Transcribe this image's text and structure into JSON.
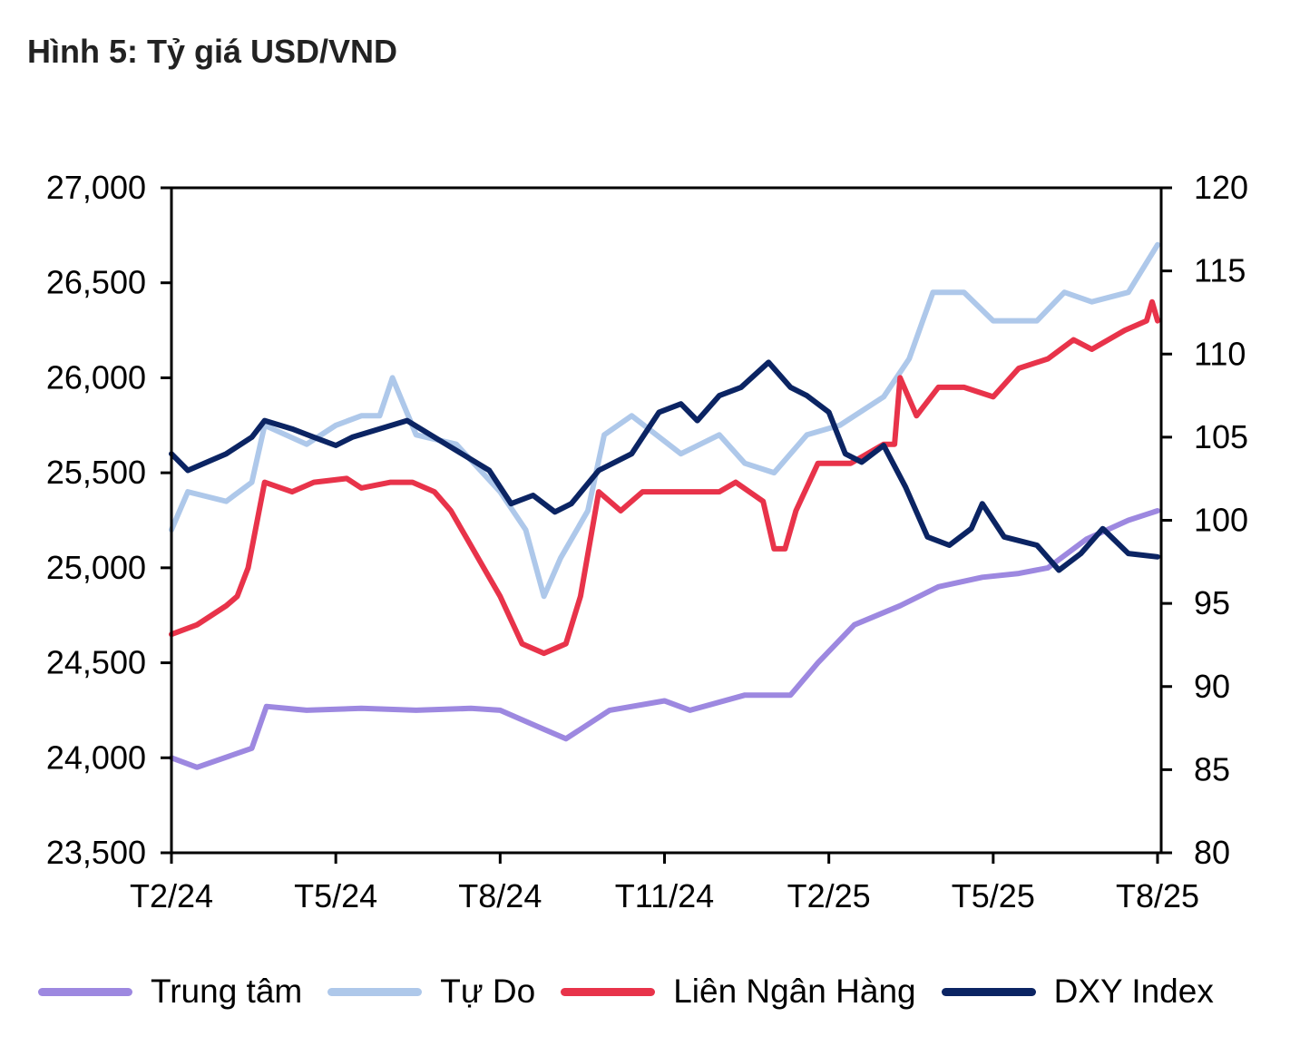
{
  "title": "Hình 5: Tỷ giá USD/VND",
  "chart_data": {
    "type": "line",
    "title": "Hình 5: Tỷ giá USD/VND",
    "x_ticks": [
      "T2/24",
      "T5/24",
      "T8/24",
      "T11/24",
      "T2/25",
      "T5/25",
      "T8/25"
    ],
    "x_tick_dates": [
      "2024-02-01",
      "2024-05-01",
      "2024-08-01",
      "2024-11-01",
      "2025-02-01",
      "2025-05-01",
      "2025-08-01"
    ],
    "xlim": [
      "2024-02-01",
      "2025-08-01"
    ],
    "y_left": {
      "lim": [
        23500,
        27000
      ],
      "ticks": [
        "23,500",
        "24,000",
        "24,500",
        "25,000",
        "25,500",
        "26,000",
        "26,500",
        "27,000"
      ],
      "values": [
        23500,
        24000,
        24500,
        25000,
        25500,
        26000,
        26500,
        27000
      ]
    },
    "y_right": {
      "lim": [
        80,
        120
      ],
      "ticks": [
        "80",
        "85",
        "90",
        "95",
        "100",
        "105",
        "110",
        "115",
        "120"
      ],
      "values": [
        80,
        85,
        90,
        95,
        100,
        105,
        110,
        115,
        120
      ]
    },
    "grid": false,
    "legend_position": "bottom",
    "series": [
      {
        "name": "Trung tâm",
        "axis": "left",
        "color": "#9d88e0",
        "points": [
          [
            "2024-02-01",
            24000
          ],
          [
            "2024-02-15",
            23950
          ],
          [
            "2024-03-15",
            24050
          ],
          [
            "2024-03-23",
            24270
          ],
          [
            "2024-04-15",
            24250
          ],
          [
            "2024-05-15",
            24260
          ],
          [
            "2024-06-15",
            24250
          ],
          [
            "2024-07-15",
            24260
          ],
          [
            "2024-08-01",
            24250
          ],
          [
            "2024-08-25",
            24150
          ],
          [
            "2024-09-07",
            24100
          ],
          [
            "2024-10-01",
            24250
          ],
          [
            "2024-11-01",
            24300
          ],
          [
            "2024-11-15",
            24250
          ],
          [
            "2024-12-15",
            24330
          ],
          [
            "2025-01-10",
            24330
          ],
          [
            "2025-01-25",
            24500
          ],
          [
            "2025-02-15",
            24700
          ],
          [
            "2025-03-10",
            24800
          ],
          [
            "2025-04-01",
            24900
          ],
          [
            "2025-04-25",
            24950
          ],
          [
            "2025-05-15",
            24970
          ],
          [
            "2025-06-01",
            25000
          ],
          [
            "2025-06-22",
            25150
          ],
          [
            "2025-07-15",
            25250
          ],
          [
            "2025-08-01",
            25300
          ]
        ]
      },
      {
        "name": "Tự Do",
        "axis": "left",
        "color": "#aec8ea",
        "points": [
          [
            "2024-02-01",
            25200
          ],
          [
            "2024-02-10",
            25400
          ],
          [
            "2024-03-01",
            25350
          ],
          [
            "2024-03-15",
            25450
          ],
          [
            "2024-03-22",
            25750
          ],
          [
            "2024-04-15",
            25650
          ],
          [
            "2024-05-01",
            25750
          ],
          [
            "2024-05-15",
            25800
          ],
          [
            "2024-05-25",
            25800
          ],
          [
            "2024-06-02",
            26000
          ],
          [
            "2024-06-15",
            25700
          ],
          [
            "2024-07-07",
            25650
          ],
          [
            "2024-08-01",
            25400
          ],
          [
            "2024-08-15",
            25200
          ],
          [
            "2024-08-25",
            24850
          ],
          [
            "2024-09-04",
            25050
          ],
          [
            "2024-09-19",
            25300
          ],
          [
            "2024-09-28",
            25700
          ],
          [
            "2024-10-13",
            25800
          ],
          [
            "2024-11-10",
            25600
          ],
          [
            "2024-12-01",
            25700
          ],
          [
            "2024-12-15",
            25550
          ],
          [
            "2025-01-01",
            25500
          ],
          [
            "2025-01-19",
            25700
          ],
          [
            "2025-02-07",
            25750
          ],
          [
            "2025-03-01",
            25900
          ],
          [
            "2025-03-15",
            26100
          ],
          [
            "2025-03-28",
            26450
          ],
          [
            "2025-04-15",
            26450
          ],
          [
            "2025-05-01",
            26300
          ],
          [
            "2025-05-25",
            26300
          ],
          [
            "2025-06-10",
            26450
          ],
          [
            "2025-06-25",
            26400
          ],
          [
            "2025-07-15",
            26450
          ],
          [
            "2025-08-01",
            26700
          ]
        ]
      },
      {
        "name": "Liên Ngân Hàng",
        "axis": "left",
        "color": "#e8334a",
        "points": [
          [
            "2024-02-01",
            24650
          ],
          [
            "2024-02-15",
            24700
          ],
          [
            "2024-03-01",
            24800
          ],
          [
            "2024-03-07",
            24850
          ],
          [
            "2024-03-13",
            25000
          ],
          [
            "2024-03-22",
            25450
          ],
          [
            "2024-04-07",
            25400
          ],
          [
            "2024-04-19",
            25450
          ],
          [
            "2024-05-07",
            25470
          ],
          [
            "2024-05-15",
            25420
          ],
          [
            "2024-06-01",
            25450
          ],
          [
            "2024-06-13",
            25450
          ],
          [
            "2024-06-25",
            25400
          ],
          [
            "2024-07-04",
            25300
          ],
          [
            "2024-07-13",
            25150
          ],
          [
            "2024-07-22",
            25000
          ],
          [
            "2024-08-01",
            24850
          ],
          [
            "2024-08-13",
            24600
          ],
          [
            "2024-08-25",
            24550
          ],
          [
            "2024-09-07",
            24600
          ],
          [
            "2024-09-15",
            24850
          ],
          [
            "2024-09-25",
            25400
          ],
          [
            "2024-10-07",
            25300
          ],
          [
            "2024-10-19",
            25400
          ],
          [
            "2024-11-10",
            25400
          ],
          [
            "2024-12-01",
            25400
          ],
          [
            "2024-12-10",
            25450
          ],
          [
            "2024-12-25",
            25350
          ],
          [
            "2025-01-01",
            25100
          ],
          [
            "2025-01-07",
            25100
          ],
          [
            "2025-01-13",
            25300
          ],
          [
            "2025-01-25",
            25550
          ],
          [
            "2025-02-13",
            25550
          ],
          [
            "2025-03-01",
            25650
          ],
          [
            "2025-03-07",
            25650
          ],
          [
            "2025-03-10",
            26000
          ],
          [
            "2025-03-19",
            25800
          ],
          [
            "2025-04-01",
            25950
          ],
          [
            "2025-04-15",
            25950
          ],
          [
            "2025-05-01",
            25900
          ],
          [
            "2025-05-15",
            26050
          ],
          [
            "2025-06-01",
            26100
          ],
          [
            "2025-06-15",
            26200
          ],
          [
            "2025-06-25",
            26150
          ],
          [
            "2025-07-13",
            26250
          ],
          [
            "2025-07-25",
            26300
          ],
          [
            "2025-07-28",
            26400
          ],
          [
            "2025-08-01",
            26300
          ]
        ]
      },
      {
        "name": "DXY Index",
        "axis": "right",
        "color": "#0b2463",
        "points": [
          [
            "2024-02-01",
            104
          ],
          [
            "2024-02-10",
            103
          ],
          [
            "2024-03-01",
            104
          ],
          [
            "2024-03-15",
            105
          ],
          [
            "2024-03-22",
            106
          ],
          [
            "2024-04-07",
            105.5
          ],
          [
            "2024-04-19",
            105
          ],
          [
            "2024-05-01",
            104.5
          ],
          [
            "2024-05-10",
            105
          ],
          [
            "2024-05-25",
            105.5
          ],
          [
            "2024-06-10",
            106
          ],
          [
            "2024-06-25",
            105
          ],
          [
            "2024-07-10",
            104
          ],
          [
            "2024-07-25",
            103
          ],
          [
            "2024-08-07",
            101
          ],
          [
            "2024-08-19",
            101.5
          ],
          [
            "2024-09-01",
            100.5
          ],
          [
            "2024-09-10",
            101
          ],
          [
            "2024-09-25",
            103
          ],
          [
            "2024-10-13",
            104
          ],
          [
            "2024-10-28",
            106.5
          ],
          [
            "2024-11-10",
            107
          ],
          [
            "2024-11-19",
            106
          ],
          [
            "2024-12-01",
            107.5
          ],
          [
            "2024-12-13",
            108
          ],
          [
            "2024-12-28",
            109.5
          ],
          [
            "2025-01-10",
            108
          ],
          [
            "2025-01-19",
            107.5
          ],
          [
            "2025-02-01",
            106.5
          ],
          [
            "2025-02-10",
            104
          ],
          [
            "2025-02-19",
            103.5
          ],
          [
            "2025-03-01",
            104.5
          ],
          [
            "2025-03-13",
            102
          ],
          [
            "2025-03-25",
            99
          ],
          [
            "2025-04-07",
            98.5
          ],
          [
            "2025-04-19",
            99.5
          ],
          [
            "2025-04-25",
            101
          ],
          [
            "2025-05-07",
            99
          ],
          [
            "2025-05-25",
            98.5
          ],
          [
            "2025-06-07",
            97
          ],
          [
            "2025-06-19",
            98
          ],
          [
            "2025-07-01",
            99.5
          ],
          [
            "2025-07-15",
            98
          ],
          [
            "2025-08-01",
            97.8
          ]
        ]
      }
    ]
  }
}
